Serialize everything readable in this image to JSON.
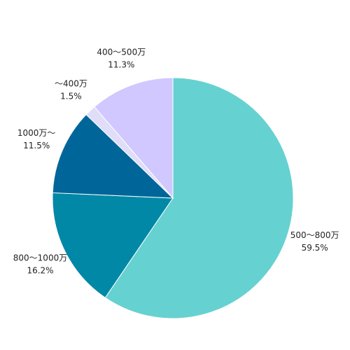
{
  "chart_data": {
    "type": "pie",
    "categories": [
      "500〜800万",
      "800〜1000万",
      "1000万〜",
      "〜400万",
      "400〜500万"
    ],
    "values": [
      59.5,
      16.2,
      11.5,
      1.5,
      11.3
    ],
    "value_labels": [
      "59.5%",
      "16.2%",
      "11.5%",
      "1.5%",
      "11.3%"
    ],
    "colors": [
      "#66d1d1",
      "#0088a6",
      "#006699",
      "#e0ddf8",
      "#d0c8ff"
    ]
  }
}
